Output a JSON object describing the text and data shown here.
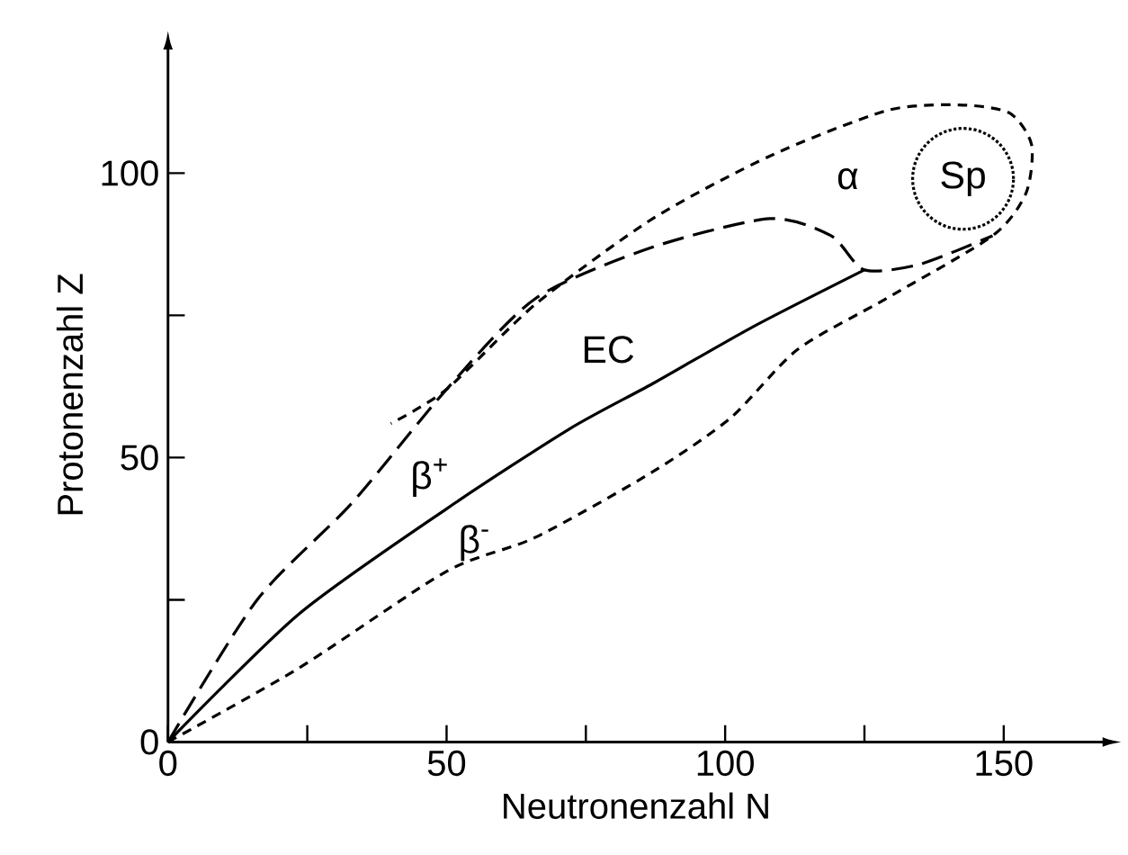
{
  "chart_data": {
    "type": "line",
    "xlabel": "Neutronenzahl N",
    "ylabel": "Protonenzahl Z",
    "xlim": [
      0,
      168
    ],
    "ylim": [
      0,
      122
    ],
    "xticks": [
      0,
      {
        "value": 25,
        "label": null
      },
      50,
      {
        "value": 75,
        "label": null
      },
      100,
      {
        "value": 125,
        "label": null
      },
      150
    ],
    "yticks": [
      0,
      {
        "value": 25,
        "label": null
      },
      50,
      {
        "value": 75,
        "label": null
      },
      100
    ],
    "grid": false,
    "marker": "none",
    "series": [
      {
        "color": "#000000",
        "line_style": "solid",
        "x": [
          0,
          23.5,
          50,
          72,
          87,
          105,
          125
        ],
        "values": [
          0,
          22.5,
          41,
          55,
          63,
          73,
          83
        ]
      },
      {
        "color": "#000000",
        "line_style": "dashed",
        "x": [
          0,
          16,
          33,
          50,
          66,
          87,
          108,
          119,
          125,
          135,
          148
        ],
        "values": [
          0,
          25,
          42,
          62,
          78,
          87,
          92,
          89,
          83,
          84,
          89
        ]
      },
      {
        "color": "#000000",
        "line_style": "densely dashed",
        "x": [
          0,
          23.5,
          50,
          66,
          87,
          101,
          113,
          129,
          148,
          154,
          155,
          151,
          142,
          129,
          108,
          87,
          66,
          50,
          40
        ],
        "values": [
          0,
          13,
          30,
          36,
          47.5,
          57,
          69,
          78,
          89,
          96.5,
          105,
          110.6,
          112,
          111,
          103,
          92,
          77,
          62,
          56
        ]
      }
    ],
    "annotations": [
      "α",
      "Sp",
      "EC",
      "β$^{+}$",
      "β$^{-}$"
    ]
  }
}
